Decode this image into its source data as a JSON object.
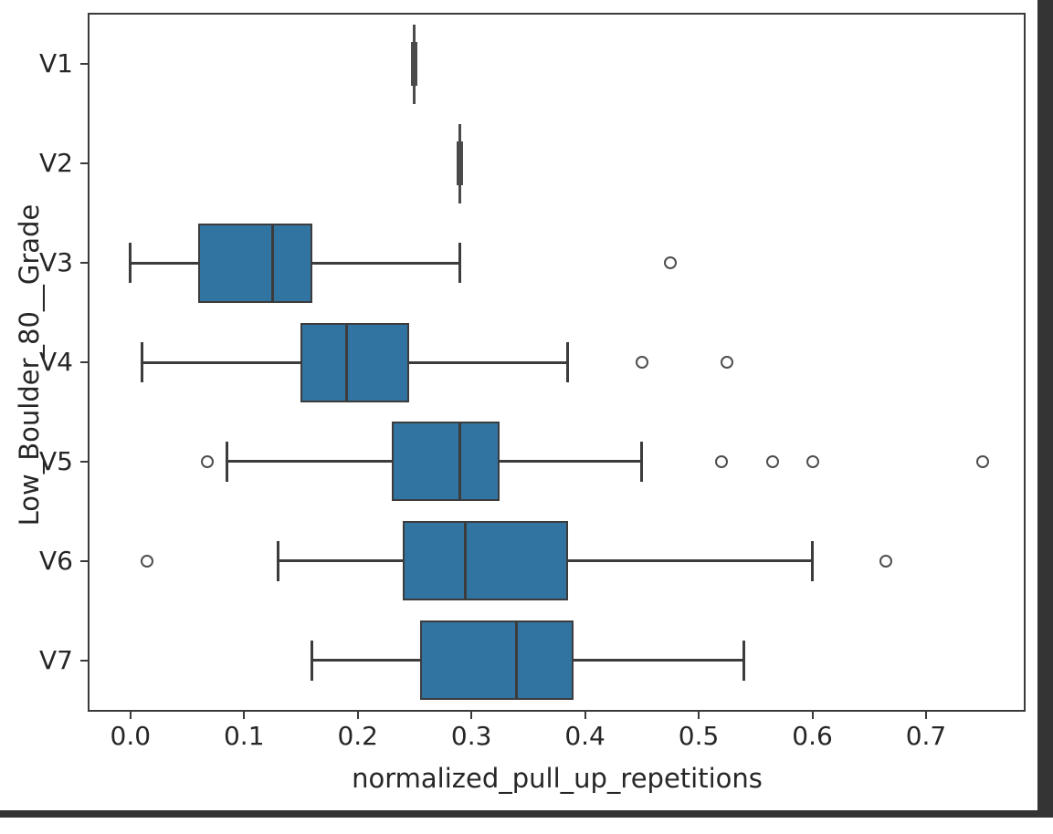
{
  "figure": {
    "background_color": "#ffffff",
    "spine_color": "#3a3a3a",
    "window_edge_color": "#343434"
  },
  "chart_data": {
    "type": "boxplot",
    "orientation": "horizontal",
    "title": "",
    "xlabel": "normalized_pull_up_repetitions",
    "ylabel": "Low_Boulder_80__Grade",
    "categories": [
      "V1",
      "V2",
      "V3",
      "V4",
      "V5",
      "V6",
      "V7"
    ],
    "x_tick_labels": [
      "0.0",
      "0.1",
      "0.2",
      "0.3",
      "0.4",
      "0.5",
      "0.6",
      "0.7"
    ],
    "x_tick_values": [
      0.0,
      0.1,
      0.2,
      0.3,
      0.4,
      0.5,
      0.6,
      0.7
    ],
    "xlim": [
      -0.036,
      0.786
    ],
    "grid": false,
    "legend": false,
    "box_fill_color": "#3274A1",
    "line_color": "#3c3c3c",
    "outlier_color": "#4d4d4d",
    "boxes": [
      {
        "category": "V1",
        "whisker_low": 0.25,
        "q1": 0.25,
        "median": 0.25,
        "q3": 0.25,
        "whisker_high": 0.25,
        "outliers": []
      },
      {
        "category": "V2",
        "whisker_low": 0.29,
        "q1": 0.29,
        "median": 0.29,
        "q3": 0.29,
        "whisker_high": 0.29,
        "outliers": []
      },
      {
        "category": "V3",
        "whisker_low": 0.0,
        "q1": 0.06,
        "median": 0.125,
        "q3": 0.16,
        "whisker_high": 0.29,
        "outliers": [
          0.475
        ]
      },
      {
        "category": "V4",
        "whisker_low": 0.01,
        "q1": 0.15,
        "median": 0.19,
        "q3": 0.245,
        "whisker_high": 0.385,
        "outliers": [
          0.45,
          0.525
        ]
      },
      {
        "category": "V5",
        "whisker_low": 0.085,
        "q1": 0.23,
        "median": 0.29,
        "q3": 0.325,
        "whisker_high": 0.45,
        "outliers": [
          0.068,
          0.52,
          0.565,
          0.6,
          0.75
        ]
      },
      {
        "category": "V6",
        "whisker_low": 0.13,
        "q1": 0.24,
        "median": 0.295,
        "q3": 0.385,
        "whisker_high": 0.6,
        "outliers": [
          0.015,
          0.665
        ]
      },
      {
        "category": "V7",
        "whisker_low": 0.16,
        "q1": 0.255,
        "median": 0.34,
        "q3": 0.39,
        "whisker_high": 0.54,
        "outliers": []
      }
    ]
  }
}
